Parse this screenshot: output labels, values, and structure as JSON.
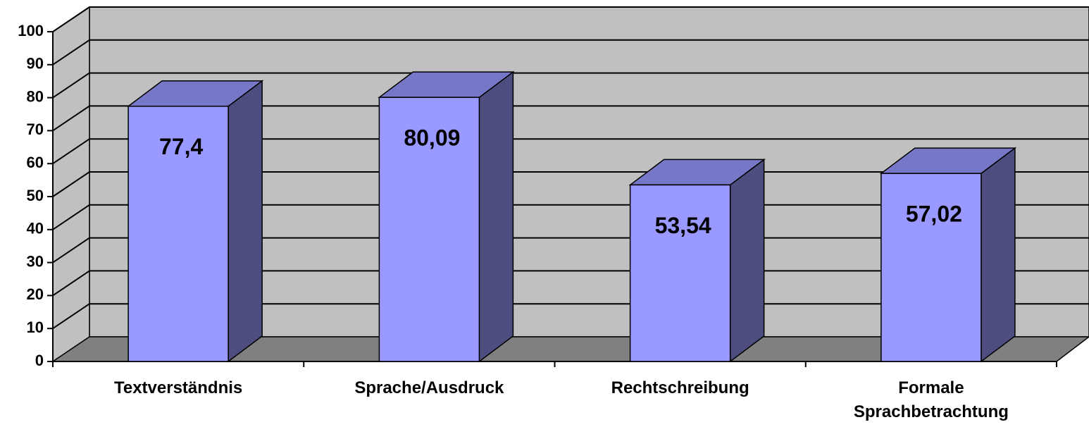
{
  "chart_data": {
    "type": "bar3d",
    "categories": [
      "Textverständnis",
      "Sprache/Ausdruck",
      "Rechtschreibung",
      "Formale Sprachbetrachtung"
    ],
    "values": [
      77.4,
      80.09,
      53.54,
      57.02
    ],
    "value_labels": [
      "77,4",
      "80,09",
      "53,54",
      "57,02"
    ],
    "color": "#9999ff",
    "ylim": [
      0,
      100
    ],
    "yticks": [
      0,
      10,
      20,
      30,
      40,
      50,
      60,
      70,
      80,
      90,
      100
    ],
    "grid": true
  }
}
